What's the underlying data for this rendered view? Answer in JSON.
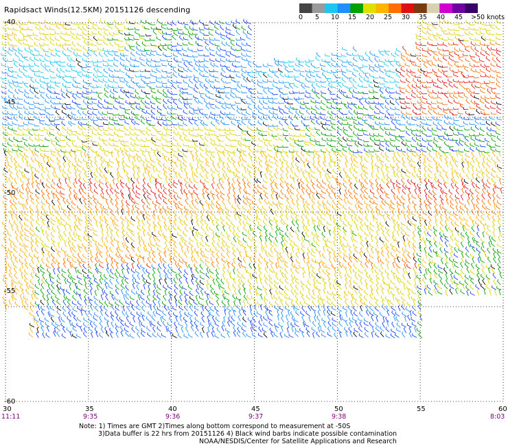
{
  "title": "Rapidsact Winds(12.5KM) 20151126 descending",
  "legend": {
    "labels": [
      "0",
      "5",
      "10",
      "15",
      "20",
      "25",
      "30",
      "35",
      "40",
      "45",
      ">50 knots"
    ],
    "colors": [
      "#444444",
      "#9a9a9a",
      "#19c7f0",
      "#1f8fff",
      "#00a000",
      "#e0e000",
      "#ffb400",
      "#ff7000",
      "#e01010",
      "#7a3a10",
      "#d8d0b0",
      "#d000d0",
      "#7000a0",
      "#3a006a"
    ]
  },
  "axes": {
    "lon_ticks": [
      "30",
      "35",
      "40",
      "45",
      "50",
      "55",
      "60"
    ],
    "lat_ticks": [
      "-40",
      "-45",
      "-50",
      "-55",
      "-60"
    ],
    "times": [
      "11:11",
      "9:35",
      "9:36",
      "9:37",
      "9:38",
      "",
      "8:03"
    ]
  },
  "notes": [
    "Note: 1) Times are GMT 2)Times along bottom correspond to measurement at -50S",
    "3)Data buffer is 22 hrs from 20151126 4) Black wind barbs indicate possible contamination",
    "NOAA/NESDIS/Center for Satellite Applications and Research"
  ]
}
